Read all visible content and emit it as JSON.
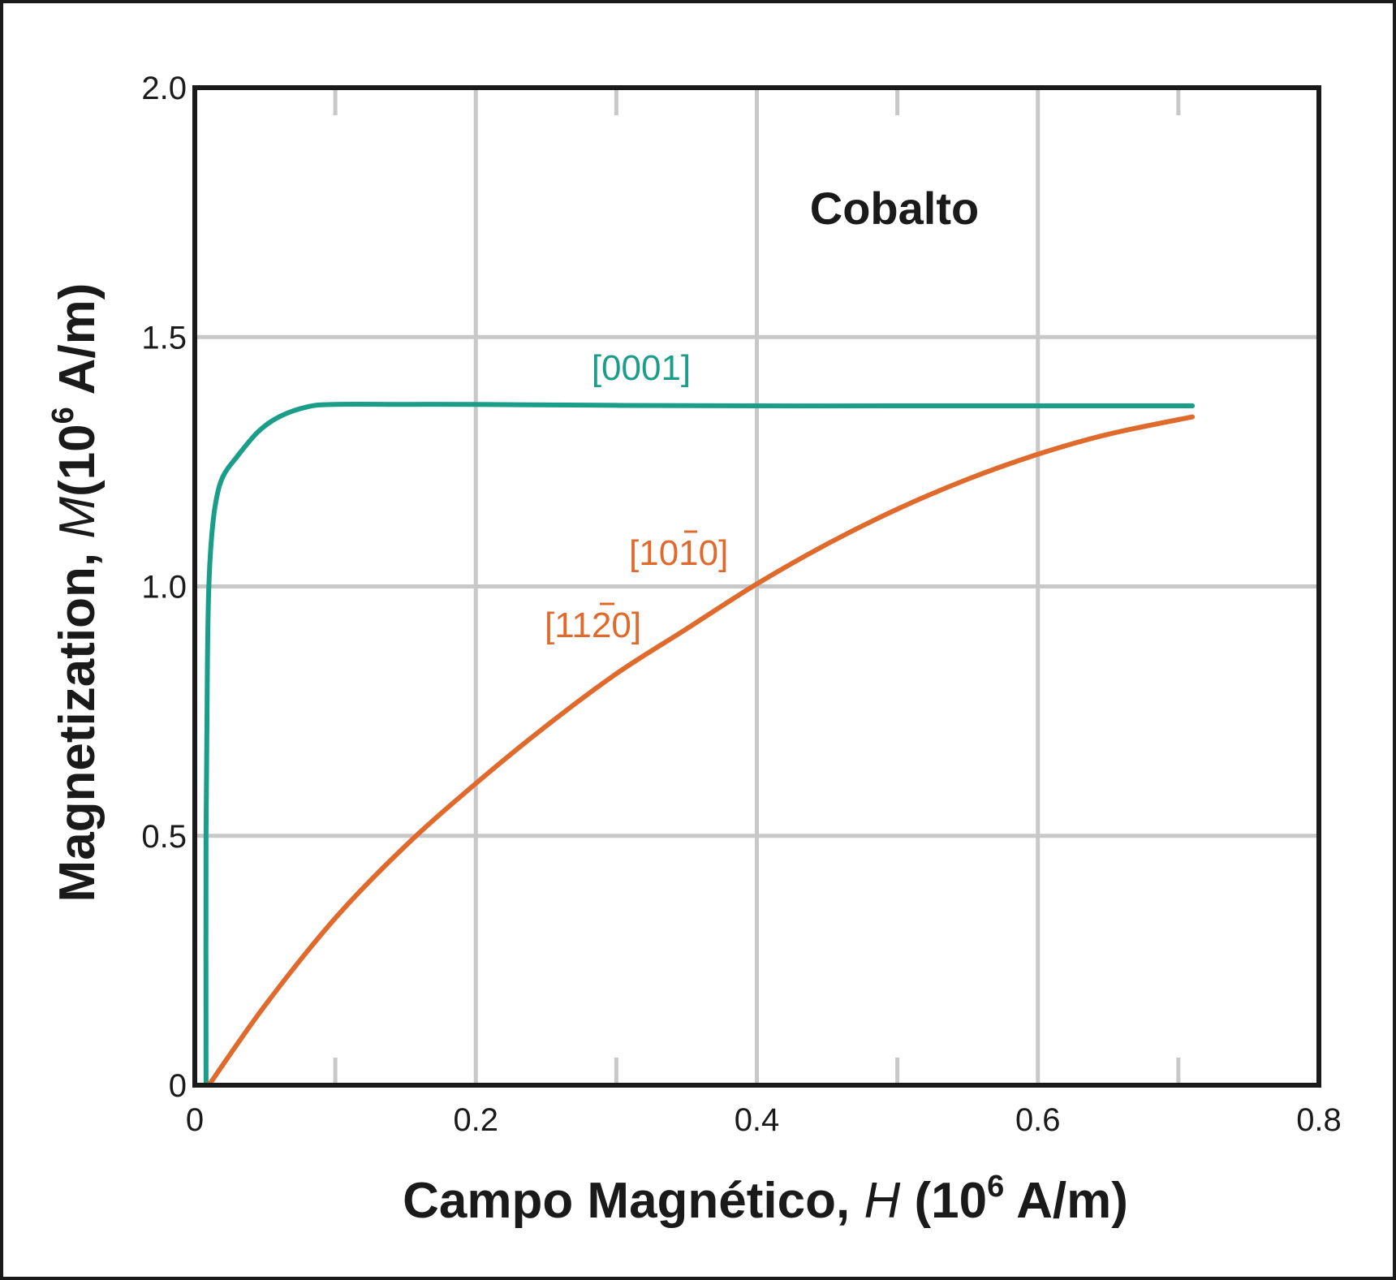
{
  "chart_data": {
    "type": "line",
    "title": "Cobalto",
    "xlabel": {
      "prefix": "Campo Magnético, ",
      "symbol": "H",
      "unit_open": " (10",
      "unit_exp": "6",
      "unit_close": " A/m)"
    },
    "ylabel": {
      "prefix": "Magnetization, ",
      "symbol": "M",
      "unit_open": "(10",
      "unit_exp": "6",
      "unit_close": " A/m)"
    },
    "xlim": [
      0,
      0.8
    ],
    "ylim": [
      0,
      2.0
    ],
    "x_ticks": [
      {
        "value": 0,
        "label": "0"
      },
      {
        "value": 0.2,
        "label": "0.2"
      },
      {
        "value": 0.4,
        "label": "0.4"
      },
      {
        "value": 0.6,
        "label": "0.6"
      },
      {
        "value": 0.8,
        "label": "0.8"
      }
    ],
    "y_ticks": [
      {
        "value": 0,
        "label": "0"
      },
      {
        "value": 0.5,
        "label": "0.5"
      },
      {
        "value": 1.0,
        "label": "1.0"
      },
      {
        "value": 1.5,
        "label": "1.5"
      },
      {
        "value": 2.0,
        "label": "2.0"
      }
    ],
    "grid": true,
    "series": [
      {
        "name": "[0001]",
        "color": "#1a9e8a",
        "x": [
          0.008,
          0.008,
          0.009,
          0.01,
          0.012,
          0.015,
          0.02,
          0.03,
          0.045,
          0.06,
          0.08,
          0.1,
          0.15,
          0.2,
          0.3,
          0.4,
          0.5,
          0.6,
          0.71
        ],
        "y": [
          0.0,
          0.5,
          0.85,
          1.0,
          1.1,
          1.17,
          1.22,
          1.26,
          1.31,
          1.34,
          1.36,
          1.365,
          1.365,
          1.365,
          1.363,
          1.362,
          1.362,
          1.362,
          1.362
        ]
      },
      {
        "name": "[10ī0]",
        "name_display": "[10¯10]",
        "color": "#e06a2c",
        "x": [
          0.01,
          0.05,
          0.1,
          0.15,
          0.2,
          0.25,
          0.3,
          0.35,
          0.4,
          0.45,
          0.5,
          0.55,
          0.6,
          0.65,
          0.71
        ],
        "y": [
          0.0,
          0.16,
          0.335,
          0.48,
          0.605,
          0.72,
          0.825,
          0.915,
          1.005,
          1.085,
          1.155,
          1.215,
          1.265,
          1.305,
          1.34
        ]
      }
    ],
    "annotations": [
      {
        "text": "[0001]",
        "color": "#1a9e8a"
      },
      {
        "text": "[10ī0]",
        "color": "#e06a2c"
      },
      {
        "text": "[11₂̄ 0]",
        "color": "#e06a2c"
      }
    ]
  },
  "labels": {
    "s0001": "[0001]",
    "s1010_a": "[10",
    "s1010_b": "1",
    "s1010_c": "0]",
    "s1120_a": "[11",
    "s1120_b": "2",
    "s1120_c": "0]"
  }
}
